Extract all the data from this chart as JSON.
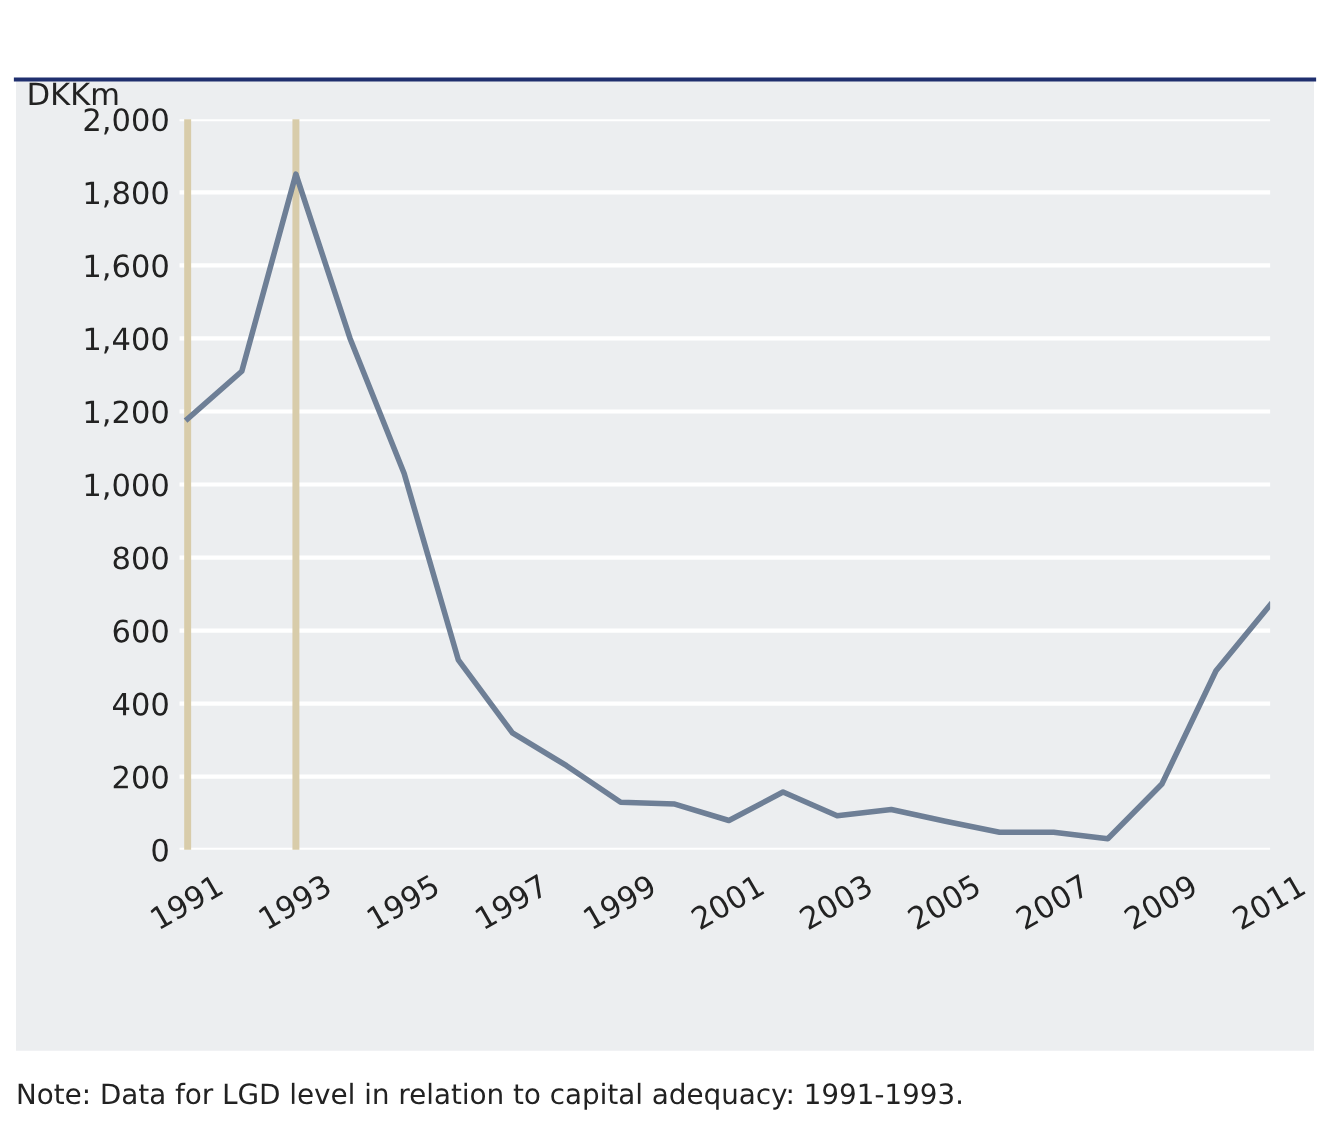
{
  "chart_data": {
    "type": "line",
    "ylabel": "DKKm",
    "x": [
      1991,
      1992,
      1993,
      1994,
      1995,
      1996,
      1997,
      1998,
      1999,
      2000,
      2001,
      2002,
      2003,
      2004,
      2005,
      2006,
      2007,
      2008,
      2009,
      2010,
      2011
    ],
    "series": [
      {
        "color": "#6e7f96",
        "values": [
          1180,
          1310,
          1850,
          1400,
          1030,
          520,
          320,
          230,
          130,
          125,
          80,
          158,
          93,
          110,
          78,
          48,
          48,
          30,
          180,
          490,
          670
        ]
      }
    ],
    "xlim": [
      1990.85,
      2011
    ],
    "xticks": [
      1991,
      1993,
      1995,
      1997,
      1999,
      2001,
      2003,
      2005,
      2007,
      2009,
      2011
    ],
    "ylim": [
      0,
      2000
    ],
    "yticks": [
      {
        "value": 0,
        "label": "0"
      },
      {
        "value": 200,
        "label": "200"
      },
      {
        "value": 400,
        "label": "400"
      },
      {
        "value": 600,
        "label": "600"
      },
      {
        "value": 800,
        "label": "800"
      },
      {
        "value": 1000,
        "label": "1,000"
      },
      {
        "value": 1200,
        "label": "1,200"
      },
      {
        "value": 1400,
        "label": "1,400"
      },
      {
        "value": 1600,
        "label": "1,600"
      },
      {
        "value": 1800,
        "label": "1,800"
      },
      {
        "value": 2000,
        "label": "2,000"
      }
    ],
    "ref_lines": [
      {
        "axis": "x",
        "value": 1991,
        "color": "#d8ccaa"
      },
      {
        "axis": "x",
        "value": 1993,
        "color": "#d8ccaa"
      }
    ],
    "grid": "y",
    "marker": "none",
    "line_style": "solid",
    "legend": false,
    "annotations": [
      "Note: Data for LGD level in relation to capital adequacy: 1991-1993."
    ]
  }
}
